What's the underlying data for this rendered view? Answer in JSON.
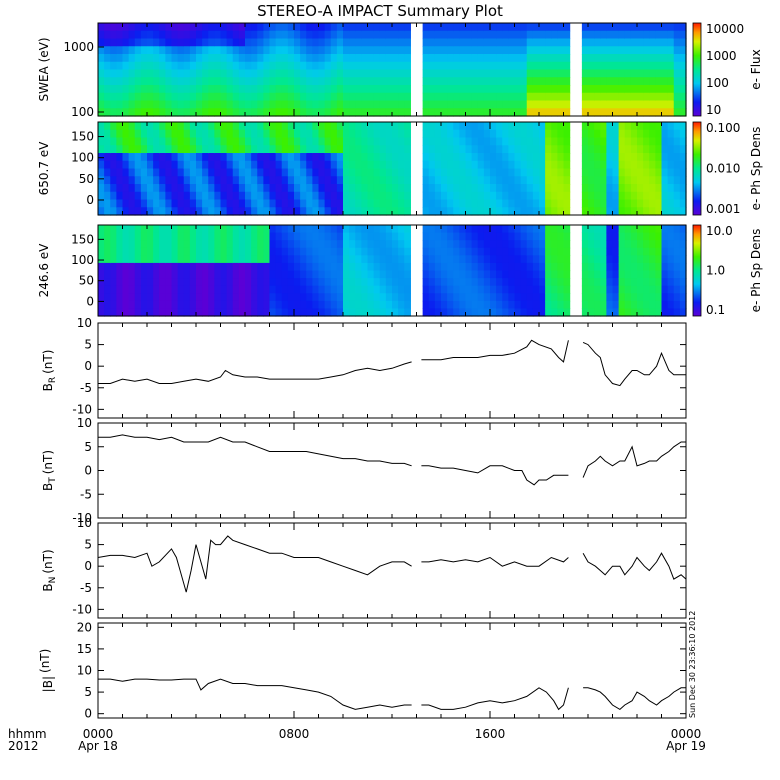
{
  "title": "STEREO-A IMPACT Summary Plot",
  "stamp": "Sun Dec 30 23:36:10 2012",
  "x_axis": {
    "row1_label": "hhmm",
    "row2_label": "2012",
    "ticks": [
      {
        "hour": 0,
        "time": "0000",
        "date": "Apr 18"
      },
      {
        "hour": 8,
        "time": "0800",
        "date": ""
      },
      {
        "hour": 16,
        "time": "1600",
        "date": ""
      },
      {
        "hour": 24,
        "time": "0000",
        "date": "Apr 19"
      }
    ],
    "range_hours": [
      0,
      24
    ]
  },
  "chart_data": [
    {
      "type": "heatmap",
      "ylabel": "SWEA (eV)",
      "yscale": "log",
      "ylim": [
        95,
        2000
      ],
      "yticks": [
        "1000",
        "100"
      ],
      "colorbar_label": "e- Flux",
      "colorbar_ticks": [
        "10000",
        "1000",
        "100",
        "10"
      ],
      "colorbar_range": [
        5,
        30000
      ],
      "data_gaps_hours": [
        [
          12.85,
          13.15
        ],
        [
          19.3,
          19.75
        ]
      ]
    },
    {
      "type": "heatmap",
      "ylabel": "650.7 eV",
      "ylim": [
        0,
        180
      ],
      "yticks": [
        "150",
        "100",
        "50",
        "0"
      ],
      "colorbar_label": "e- Ph Sp Dens",
      "colorbar_ticks": [
        "0.100",
        "0.010",
        "0.001"
      ],
      "colorbar_range": [
        0.001,
        0.1
      ],
      "data_gaps_hours": [
        [
          12.85,
          13.15
        ],
        [
          19.3,
          19.75
        ]
      ]
    },
    {
      "type": "heatmap",
      "ylabel": "246.6 eV",
      "ylim": [
        0,
        180
      ],
      "yticks": [
        "150",
        "100",
        "50",
        "0"
      ],
      "colorbar_label": "e- Ph Sp Dens",
      "colorbar_ticks": [
        "10.0",
        "1.0",
        "0.1"
      ],
      "colorbar_range": [
        0.08,
        10
      ],
      "data_gaps_hours": [
        [
          12.85,
          13.15
        ],
        [
          19.3,
          19.75
        ]
      ]
    },
    {
      "type": "line",
      "ylabel_main": "B",
      "ylabel_sub": "R",
      "ylabel_unit": "(nT)",
      "ylim": [
        -12,
        10
      ],
      "yticks": [
        "10",
        "5",
        "0",
        "-5",
        "-10"
      ],
      "x": [
        0.0,
        0.5,
        1.0,
        1.5,
        2.0,
        2.5,
        3.0,
        3.5,
        4.0,
        4.5,
        5.0,
        5.2,
        5.5,
        6.0,
        6.5,
        7.0,
        7.5,
        8.0,
        8.5,
        9.0,
        9.5,
        10.0,
        10.5,
        11.0,
        11.5,
        12.0,
        12.5,
        12.8,
        13.2,
        13.5,
        14.0,
        14.5,
        15.0,
        15.5,
        16.0,
        16.5,
        17.0,
        17.5,
        17.7,
        18.0,
        18.5,
        18.8,
        19.0,
        19.2,
        19.8,
        20.0,
        20.3,
        20.5,
        20.7,
        21.0,
        21.3,
        21.5,
        21.8,
        22.0,
        22.3,
        22.5,
        22.8,
        23.0,
        23.3,
        23.5,
        23.8,
        24.0
      ],
      "y": [
        -4,
        -4,
        -3,
        -3.5,
        -3,
        -4,
        -4,
        -3.5,
        -3,
        -3.5,
        -2.5,
        -1,
        -2,
        -2.5,
        -2.5,
        -3,
        -3,
        -3,
        -3,
        -3,
        -2.5,
        -2,
        -1,
        -0.5,
        -1,
        -0.5,
        0.5,
        1,
        1.5,
        1.5,
        1.5,
        2,
        2,
        2,
        2.5,
        2.5,
        3,
        4.5,
        6,
        5,
        4,
        2,
        1,
        6,
        5.5,
        5,
        3,
        2,
        -2,
        -4,
        -4.5,
        -3,
        -1,
        -1,
        -2,
        -2,
        0,
        3,
        -1,
        -2,
        -2,
        -2
      ]
    },
    {
      "type": "line",
      "ylabel_main": "B",
      "ylabel_sub": "T",
      "ylabel_unit": "(nT)",
      "ylim": [
        -10,
        10
      ],
      "yticks": [
        "10",
        "5",
        "0",
        "-5",
        "-10"
      ],
      "x": [
        0.0,
        0.5,
        1.0,
        1.5,
        2.0,
        2.5,
        3.0,
        3.5,
        4.0,
        4.5,
        5.0,
        5.5,
        6.0,
        6.5,
        7.0,
        7.5,
        8.0,
        8.5,
        9.0,
        9.5,
        10.0,
        10.5,
        11.0,
        11.5,
        12.0,
        12.5,
        12.8,
        13.2,
        13.5,
        14.0,
        14.5,
        15.0,
        15.5,
        16.0,
        16.5,
        17.0,
        17.3,
        17.5,
        17.8,
        18.0,
        18.3,
        18.6,
        19.0,
        19.2,
        19.8,
        20.0,
        20.3,
        20.5,
        20.7,
        21.0,
        21.3,
        21.5,
        21.8,
        22.0,
        22.3,
        22.5,
        22.8,
        23.0,
        23.3,
        23.5,
        23.8,
        24.0
      ],
      "y": [
        7,
        7,
        7.5,
        7,
        7,
        6.5,
        7,
        6,
        6,
        6,
        7,
        6,
        6,
        5,
        4,
        4,
        4,
        4,
        3.5,
        3,
        2.5,
        2.5,
        2,
        2,
        1.5,
        1.5,
        1,
        1,
        1,
        0.5,
        0.5,
        0,
        -0.5,
        1,
        1,
        0,
        0,
        -2,
        -3,
        -2,
        -2,
        -1,
        -1,
        -1,
        -1.5,
        1,
        2,
        3,
        2,
        1,
        2,
        2,
        5,
        1,
        1.5,
        2,
        2,
        3,
        4,
        5,
        6,
        6
      ]
    },
    {
      "type": "line",
      "ylabel_main": "B",
      "ylabel_sub": "N",
      "ylabel_unit": "(nT)",
      "ylim": [
        -12,
        10
      ],
      "yticks": [
        "10",
        "5",
        "0",
        "-5",
        "-10"
      ],
      "x": [
        0.0,
        0.5,
        1.0,
        1.5,
        2.0,
        2.2,
        2.5,
        3.0,
        3.2,
        3.4,
        3.6,
        3.8,
        4.0,
        4.2,
        4.4,
        4.6,
        4.8,
        5.0,
        5.3,
        5.5,
        6.0,
        6.5,
        7.0,
        7.5,
        8.0,
        8.5,
        9.0,
        9.5,
        10.0,
        10.5,
        11.0,
        11.5,
        12.0,
        12.5,
        12.8,
        13.2,
        13.5,
        14.0,
        14.5,
        15.0,
        15.5,
        16.0,
        16.5,
        17.0,
        17.5,
        18.0,
        18.5,
        19.0,
        19.2,
        19.8,
        20.0,
        20.3,
        20.5,
        20.7,
        21.0,
        21.3,
        21.5,
        21.8,
        22.0,
        22.3,
        22.5,
        22.8,
        23.0,
        23.3,
        23.5,
        23.8,
        24.0
      ],
      "y": [
        2,
        2.5,
        2.5,
        2,
        3,
        0,
        1,
        4,
        2,
        -2,
        -6,
        -1,
        5,
        1,
        -3,
        6,
        5,
        5,
        7,
        6,
        5,
        4,
        3,
        3,
        2,
        2,
        2,
        1,
        0,
        -1,
        -2,
        0,
        1,
        1,
        0,
        1,
        1,
        1.5,
        1,
        1.5,
        1,
        2,
        0,
        1,
        0,
        0,
        2,
        1,
        2,
        3,
        1,
        0,
        -1,
        -2,
        0,
        0,
        -2,
        0,
        2,
        0,
        -1,
        1,
        3,
        0,
        -3,
        -2,
        -3
      ]
    },
    {
      "type": "line",
      "ylabel_main": "|B|",
      "ylabel_sub": "",
      "ylabel_unit": "(nT)",
      "ylim": [
        -1,
        21
      ],
      "yticks": [
        "20",
        "15",
        "10",
        "5",
        "0"
      ],
      "x": [
        0.0,
        0.5,
        1.0,
        1.5,
        2.0,
        2.5,
        3.0,
        3.5,
        4.0,
        4.2,
        4.5,
        5.0,
        5.5,
        6.0,
        6.5,
        7.0,
        7.5,
        8.0,
        8.5,
        9.0,
        9.5,
        10.0,
        10.5,
        11.0,
        11.5,
        12.0,
        12.5,
        12.8,
        13.2,
        13.5,
        14.0,
        14.5,
        15.0,
        15.5,
        16.0,
        16.5,
        17.0,
        17.5,
        18.0,
        18.3,
        18.6,
        18.8,
        19.0,
        19.2,
        19.8,
        20.0,
        20.3,
        20.5,
        20.7,
        21.0,
        21.3,
        21.5,
        21.8,
        22.0,
        22.3,
        22.5,
        22.8,
        23.0,
        23.3,
        23.5,
        23.8,
        24.0
      ],
      "y": [
        8,
        8,
        7.5,
        8,
        8,
        7.8,
        7.8,
        8,
        8,
        5.5,
        7,
        8,
        7,
        7,
        6.5,
        6.5,
        6.5,
        6,
        5.5,
        5,
        4,
        2,
        1,
        1.5,
        2,
        1.5,
        2,
        2,
        2,
        2,
        1,
        1,
        1.5,
        2.5,
        3,
        2.5,
        3,
        4,
        6,
        5,
        3,
        1,
        2,
        6,
        6,
        6,
        5.5,
        5,
        4,
        2,
        1,
        2,
        3,
        5,
        4,
        3,
        2,
        3,
        4,
        5,
        6,
        6
      ]
    }
  ]
}
